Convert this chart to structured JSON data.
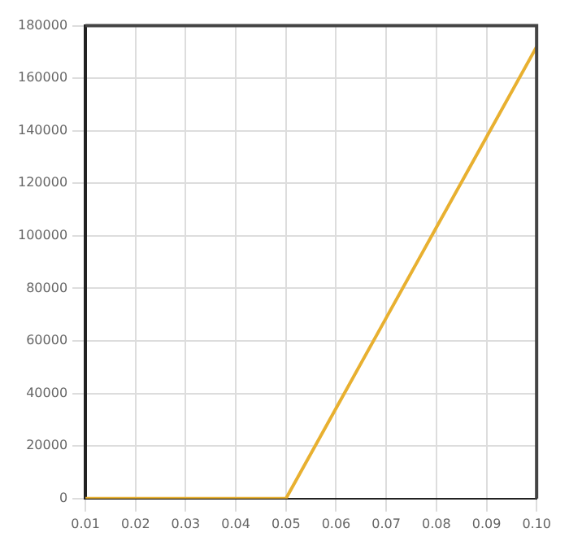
{
  "chart_data": {
    "type": "line",
    "x": [
      0.01,
      0.02,
      0.03,
      0.04,
      0.05,
      0.06,
      0.07,
      0.08,
      0.09,
      0.1
    ],
    "series": [
      {
        "color": "#e8b030",
        "values": [
          0,
          0,
          0,
          0,
          0,
          34400,
          68800,
          103200,
          137600,
          172000
        ]
      }
    ],
    "xlim": [
      0.01,
      0.1
    ],
    "xticks": [
      {
        "value": 0.01,
        "label": "0.01"
      },
      {
        "value": 0.02,
        "label": "0.02"
      },
      {
        "value": 0.03,
        "label": "0.03"
      },
      {
        "value": 0.04,
        "label": "0.04"
      },
      {
        "value": 0.05,
        "label": "0.05"
      },
      {
        "value": 0.06,
        "label": "0.06"
      },
      {
        "value": 0.07,
        "label": "0.07"
      },
      {
        "value": 0.08,
        "label": "0.08"
      },
      {
        "value": 0.09,
        "label": "0.09"
      },
      {
        "value": 0.1,
        "label": "0.10"
      }
    ],
    "ylim": [
      0,
      180000
    ],
    "yticks": [
      0,
      20000,
      40000,
      60000,
      80000,
      100000,
      120000,
      140000,
      160000,
      180000
    ],
    "grid": true,
    "legend": false,
    "marker": "none",
    "line_style": "solid"
  }
}
